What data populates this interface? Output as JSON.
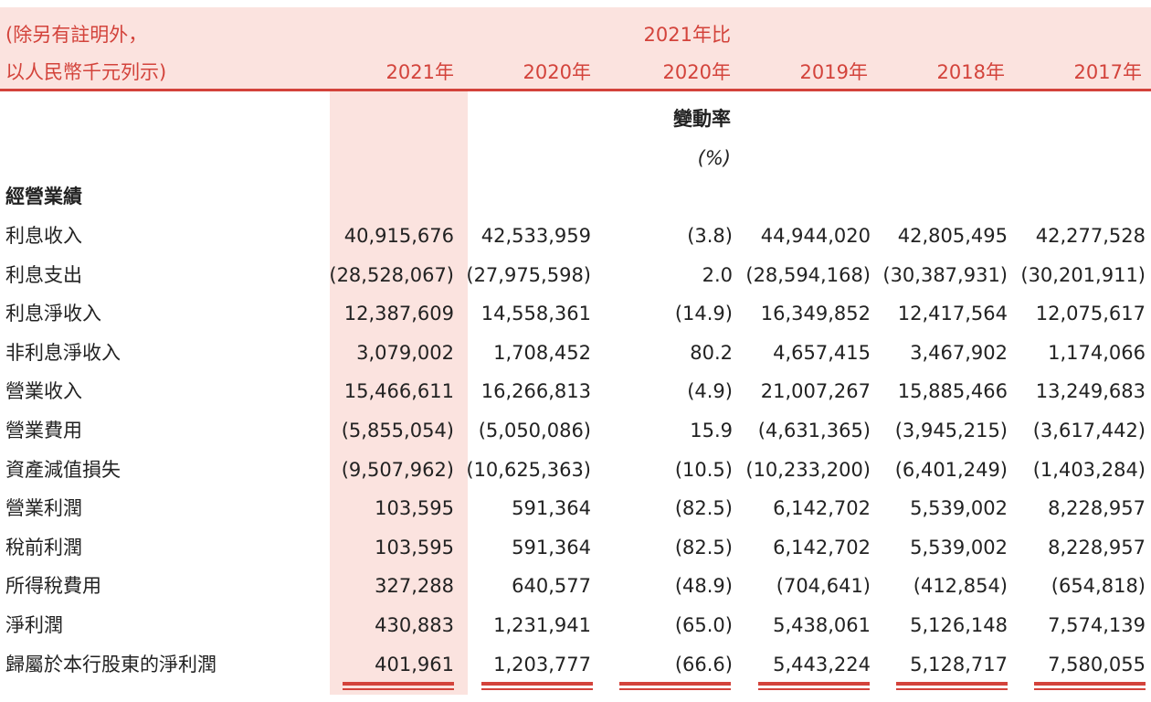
{
  "header": {
    "unit_line1": "(除另有註明外，",
    "unit_line2": "以人民幣千元列示)",
    "compare_line1": "2021年比",
    "years": [
      "2021年",
      "2020年",
      "2020年",
      "2019年",
      "2018年",
      "2017年"
    ]
  },
  "subheader": {
    "change_label": "變動率",
    "pct_label": "(%)"
  },
  "section_title": "經營業績",
  "rows": [
    {
      "label": "利息收入",
      "values": [
        "40,915,676",
        "42,533,959",
        "(3.8)",
        "44,944,020",
        "42,805,495",
        "42,277,528"
      ]
    },
    {
      "label": "利息支出",
      "values": [
        "(28,528,067)",
        "(27,975,598)",
        "2.0",
        "(28,594,168)",
        "(30,387,931)",
        "(30,201,911)"
      ]
    },
    {
      "label": "利息淨收入",
      "values": [
        "12,387,609",
        "14,558,361",
        "(14.9)",
        "16,349,852",
        "12,417,564",
        "12,075,617"
      ]
    },
    {
      "label": "非利息淨收入",
      "values": [
        "3,079,002",
        "1,708,452",
        "80.2",
        "4,657,415",
        "3,467,902",
        "1,174,066"
      ]
    },
    {
      "label": "營業收入",
      "values": [
        "15,466,611",
        "16,266,813",
        "(4.9)",
        "21,007,267",
        "15,885,466",
        "13,249,683"
      ]
    },
    {
      "label": "營業費用",
      "values": [
        "(5,855,054)",
        "(5,050,086)",
        "15.9",
        "(4,631,365)",
        "(3,945,215)",
        "(3,617,442)"
      ]
    },
    {
      "label": "資產減值損失",
      "values": [
        "(9,507,962)",
        "(10,625,363)",
        "(10.5)",
        "(10,233,200)",
        "(6,401,249)",
        "(1,403,284)"
      ]
    },
    {
      "label": "營業利潤",
      "values": [
        "103,595",
        "591,364",
        "(82.5)",
        "6,142,702",
        "5,539,002",
        "8,228,957"
      ]
    },
    {
      "label": "稅前利潤",
      "values": [
        "103,595",
        "591,364",
        "(82.5)",
        "6,142,702",
        "5,539,002",
        "8,228,957"
      ]
    },
    {
      "label": "所得稅費用",
      "values": [
        "327,288",
        "640,577",
        "(48.9)",
        "(704,641)",
        "(412,854)",
        "(654,818)"
      ]
    },
    {
      "label": "淨利潤",
      "values": [
        "430,883",
        "1,231,941",
        "(65.0)",
        "5,438,061",
        "5,126,148",
        "7,574,139"
      ]
    },
    {
      "label": "歸屬於本行股東的淨利潤",
      "values": [
        "401,961",
        "1,203,777",
        "(66.6)",
        "5,443,224",
        "5,128,717",
        "7,580,055"
      ]
    }
  ],
  "colors": {
    "accent": "#d3433b",
    "highlight": "#fbe3df",
    "text": "#222222"
  }
}
